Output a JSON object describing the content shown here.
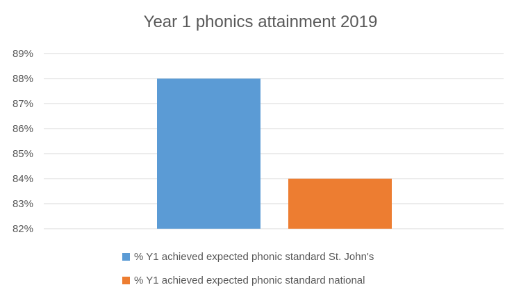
{
  "chart_data": {
    "type": "bar",
    "title": "Year 1 phonics attainment 2019",
    "xlabel": "",
    "ylabel": "",
    "ylim": [
      0.82,
      0.89
    ],
    "yticks": [
      "82%",
      "83%",
      "84%",
      "85%",
      "86%",
      "87%",
      "88%",
      "89%"
    ],
    "grid": true,
    "legend_position": "bottom",
    "series": [
      {
        "name": "% Y1 achieved expected phonic standard St. John's",
        "values": [
          0.88
        ],
        "color": "#5b9bd5"
      },
      {
        "name": "% Y1 achieved expected phonic standard national",
        "values": [
          0.84
        ],
        "color": "#ed7d31"
      }
    ]
  }
}
